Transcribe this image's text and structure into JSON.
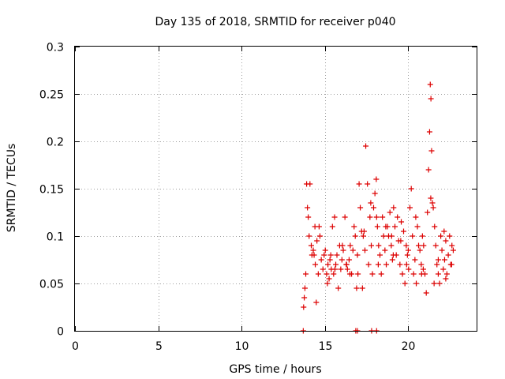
{
  "chart_data": {
    "type": "scatter",
    "title": "Day 135 of 2018, SRMTID for receiver p040",
    "xlabel": "GPS time / hours",
    "ylabel": "SRMTID / TECUs",
    "xlim": [
      0,
      24.1
    ],
    "ylim": [
      0,
      0.3
    ],
    "x_ticks": [
      0,
      5,
      10,
      15,
      20
    ],
    "y_ticks": [
      0,
      0.05,
      0.1,
      0.15,
      0.2,
      0.25,
      0.3
    ],
    "x_tick_labels": [
      "0",
      "5",
      "10",
      "15",
      "20"
    ],
    "y_tick_labels": [
      "0",
      "0.05",
      "0.1",
      "0.15",
      "0.2",
      "0.25",
      "0.3"
    ],
    "grid": true,
    "marker": "plus",
    "color": "#dd0000",
    "series": [
      {
        "name": "SRMTID",
        "x": [
          13.72,
          13.9,
          14.1,
          14.22,
          14.48,
          14.6,
          14.95,
          13.76,
          13.8,
          13.85,
          13.95,
          14.05,
          14.18,
          14.3,
          14.42,
          14.52,
          14.65,
          14.78,
          14.88,
          15.02,
          15.1,
          15.18,
          15.25,
          15.3,
          15.38,
          15.45,
          15.52,
          15.58,
          15.65,
          15.72,
          15.8,
          15.88,
          15.95,
          16.02,
          16.1,
          16.2,
          16.28,
          16.35,
          16.45,
          16.52,
          16.6,
          16.68,
          16.75,
          16.82,
          16.9,
          16.98,
          17.05,
          17.12,
          17.2,
          17.3,
          17.4,
          17.45,
          17.55,
          17.62,
          17.7,
          17.78,
          17.85,
          17.92,
          18.0,
          18.08,
          18.15,
          18.22,
          18.3,
          18.38,
          18.45,
          18.52,
          18.6,
          18.68,
          18.75,
          18.82,
          18.9,
          18.98,
          19.05,
          19.12,
          19.2,
          19.28,
          19.35,
          19.42,
          19.5,
          19.58,
          19.65,
          19.72,
          19.8,
          19.88,
          19.95,
          20.02,
          20.1,
          20.18,
          20.25,
          20.32,
          20.4,
          20.48,
          20.55,
          20.62,
          20.7,
          20.78,
          20.85,
          20.92,
          21.0,
          21.08,
          21.15,
          21.22,
          21.28,
          21.32,
          21.36,
          21.4,
          21.45,
          21.5,
          21.58,
          21.65,
          21.72,
          21.8,
          21.88,
          21.95,
          22.02,
          22.1,
          22.18,
          22.25,
          22.32,
          22.4,
          22.48,
          22.55,
          22.62,
          22.7,
          14.0,
          14.35,
          14.7,
          15.15,
          15.6,
          16.05,
          16.5,
          16.95,
          17.35,
          17.75,
          18.2,
          18.65,
          19.1,
          19.55,
          20.0,
          20.45,
          20.9,
          21.35,
          21.8,
          22.25,
          22.6,
          14.4,
          15.35,
          16.3,
          17.25,
          18.1,
          19.0,
          19.9,
          20.8,
          21.55,
          22.15,
          13.7,
          16.85,
          16.95,
          17.8,
          18.1
        ],
        "y": [
          0.025,
          0.155,
          0.155,
          0.08,
          0.03,
          0.06,
          0.08,
          0.035,
          0.045,
          0.06,
          0.13,
          0.1,
          0.09,
          0.085,
          0.07,
          0.095,
          0.11,
          0.075,
          0.065,
          0.085,
          0.06,
          0.07,
          0.055,
          0.075,
          0.065,
          0.11,
          0.06,
          0.12,
          0.07,
          0.08,
          0.045,
          0.09,
          0.065,
          0.075,
          0.085,
          0.12,
          0.07,
          0.065,
          0.075,
          0.09,
          0.06,
          0.085,
          0.11,
          0.1,
          0.045,
          0.06,
          0.155,
          0.13,
          0.105,
          0.1,
          0.085,
          0.195,
          0.155,
          0.07,
          0.12,
          0.09,
          0.06,
          0.13,
          0.145,
          0.16,
          0.11,
          0.09,
          0.08,
          0.06,
          0.12,
          0.1,
          0.085,
          0.07,
          0.11,
          0.1,
          0.125,
          0.09,
          0.075,
          0.13,
          0.11,
          0.08,
          0.12,
          0.095,
          0.07,
          0.115,
          0.06,
          0.105,
          0.05,
          0.09,
          0.08,
          0.065,
          0.13,
          0.15,
          0.1,
          0.06,
          0.075,
          0.05,
          0.11,
          0.09,
          0.085,
          0.07,
          0.1,
          0.09,
          0.06,
          0.04,
          0.125,
          0.17,
          0.21,
          0.26,
          0.245,
          0.19,
          0.135,
          0.13,
          0.11,
          0.09,
          0.07,
          0.06,
          0.05,
          0.1,
          0.085,
          0.065,
          0.075,
          0.095,
          0.06,
          0.08,
          0.1,
          0.07,
          0.09,
          0.085,
          0.12,
          0.08,
          0.1,
          0.05,
          0.065,
          0.09,
          0.06,
          0.08,
          0.105,
          0.135,
          0.07,
          0.11,
          0.08,
          0.095,
          0.085,
          0.12,
          0.065,
          0.14,
          0.075,
          0.055,
          0.07,
          0.11,
          0.08,
          0.07,
          0.045,
          0.12,
          0.1,
          0.07,
          0.06,
          0.05,
          0.105,
          0.0,
          0.0,
          0.0,
          0.0,
          0.0
        ]
      }
    ]
  }
}
